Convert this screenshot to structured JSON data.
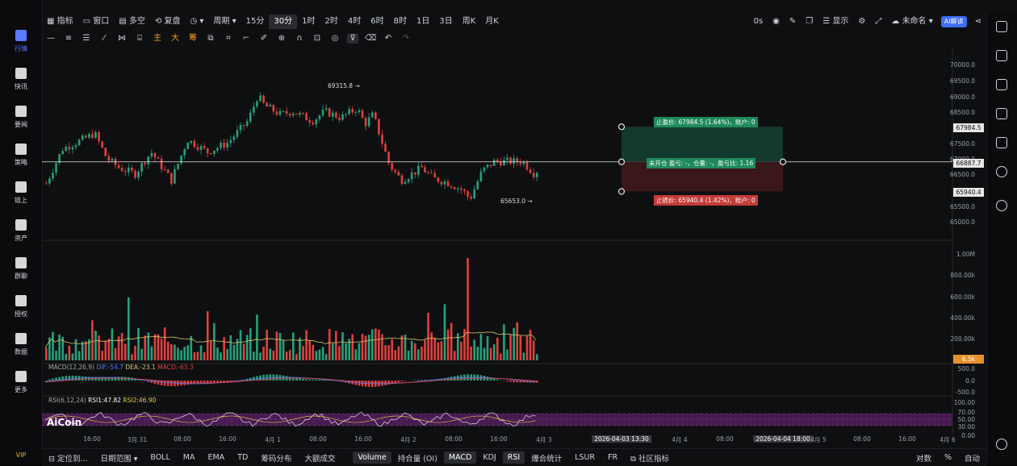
{
  "left_rail": {
    "items": [
      {
        "key": "market",
        "label": "行情",
        "active": true
      },
      {
        "key": "flash",
        "label": "快讯",
        "active": false
      },
      {
        "key": "news",
        "label": "要闻",
        "active": false
      },
      {
        "key": "strategy",
        "label": "策略",
        "active": false
      },
      {
        "key": "onchain",
        "label": "链上",
        "active": false
      },
      {
        "key": "assets",
        "label": "资产",
        "active": false
      },
      {
        "key": "group",
        "label": "群聊",
        "active": false
      },
      {
        "key": "auth",
        "label": "授权",
        "active": false
      },
      {
        "key": "data",
        "label": "数据",
        "active": false
      },
      {
        "key": "more",
        "label": "更多",
        "active": false
      }
    ],
    "vip_label": "VIP"
  },
  "topbar": {
    "indicators": "指标",
    "multi_period": "窗口",
    "multi_empty": "多空",
    "review": "复盘",
    "period": "周期",
    "intervals": [
      "15分",
      "30分",
      "1时",
      "2时",
      "4时",
      "6时",
      "8时",
      "1日",
      "3日",
      "周K",
      "月K"
    ],
    "active_interval": "30分",
    "countdown": "0s",
    "display": "显示",
    "unnamed": "未命名",
    "ai_button": "AI解读"
  },
  "drawbar": {
    "zhu": "主",
    "da": "大",
    "chou": "筹"
  },
  "price_axis": {
    "ticks": [
      "70000.0",
      "69500.0",
      "69000.0",
      "68500.0",
      "68000.0",
      "67500.0",
      "67000.0",
      "66500.0",
      "66000.0",
      "65500.0",
      "65000.0"
    ],
    "take_profit_tag": "67984.5",
    "current_tag": "66887.7",
    "stop_loss_tag": "65940.4"
  },
  "annotations": {
    "high_label": "69315.8 →",
    "low_label": "65653.0 →",
    "take_profit": "止盈价: 67984.5 (1.64%)，账户: 0",
    "position": "未开仓 盈亏: -，仓量: -，盈亏比: 1.16",
    "stop_loss": "止损价: 65940.4 (1.42%)，账户: 0"
  },
  "volume_axis": {
    "ticks": [
      "1.00M",
      "800.00k",
      "600.00k",
      "400.00k",
      "200.00k"
    ],
    "tag": "6.5k"
  },
  "macd": {
    "name": "MACD(12,26,9)",
    "dif": "DIF:-54.7",
    "dea": "DEA:-23.1",
    "macd": "MACD:-63.3",
    "ticks": [
      "500.0",
      "0.0",
      "-500.0"
    ]
  },
  "rsi": {
    "name": "RSI(6,12,24)",
    "rsi1": "RSI1:47.82",
    "rsi2": "RSI2:46.90",
    "ticks": [
      "100.00",
      "70.00",
      "50.00",
      "30.00",
      "0.00"
    ]
  },
  "watermark": "AiCoin",
  "xaxis": {
    "labels": [
      "16:00",
      "3月 31",
      "08:00",
      "16:00",
      "4月 1",
      "08:00",
      "16:00",
      "4月 2",
      "08:00",
      "16:00",
      "4月 3",
      "08:00",
      "4月 4",
      "08:00",
      "4月 5",
      "08:00",
      "16:00",
      "4月 6"
    ],
    "cursor_start": "2026-04-03 13:30",
    "cursor_end": "2026-04-04 18:00"
  },
  "bottombar": {
    "locate": "定位到...",
    "date_range": "日期范围",
    "indicators": [
      "BOLL",
      "MA",
      "EMA",
      "TD",
      "筹码分布",
      "大额成交"
    ],
    "sub_indicators": [
      "Volume",
      "持合量 (OI)",
      "MACD",
      "KDJ",
      "RSI",
      "爆合统计",
      "LSUR",
      "FR",
      "社区指标"
    ],
    "active": [
      "Volume",
      "MACD",
      "RSI"
    ],
    "log": "对数",
    "percent": "%",
    "auto": "自动"
  },
  "colors": {
    "up": "#26a17b",
    "down": "#e0413e",
    "accent": "#5a79ff",
    "ai": "#3d6cf5",
    "ma_yellow": "#d9c46a",
    "rsi_band": "#4a1a52"
  }
}
